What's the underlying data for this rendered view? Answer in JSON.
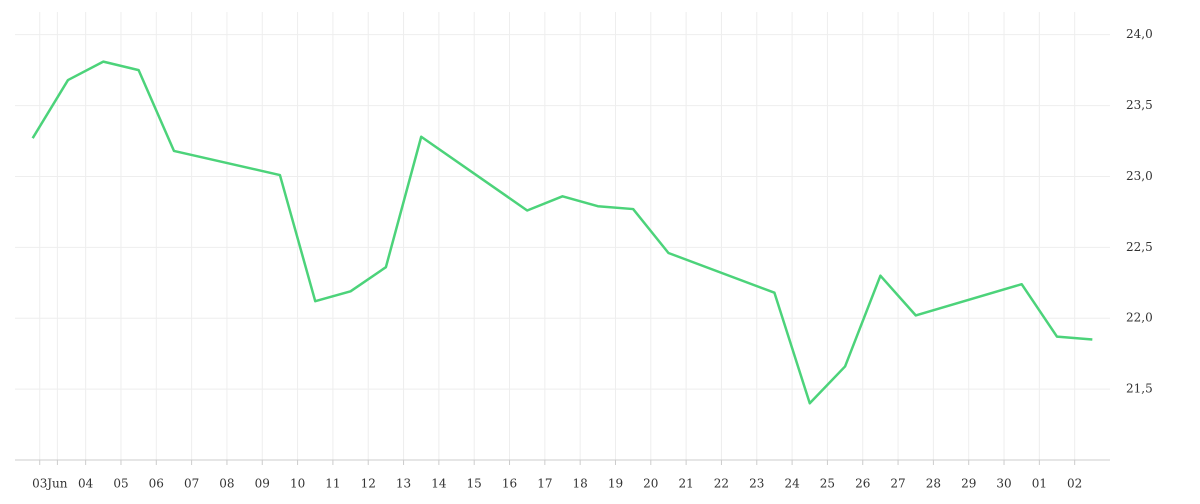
{
  "chart_data": {
    "type": "line",
    "x": [
      0,
      1,
      2,
      3,
      4,
      7,
      8,
      9,
      10,
      11,
      14,
      15,
      16,
      17,
      18,
      21,
      22,
      23,
      24,
      25,
      28,
      29,
      30
    ],
    "series": [
      {
        "color": "#4cd37a",
        "values": [
          23.27,
          23.68,
          23.81,
          23.75,
          23.18,
          23.01,
          22.12,
          22.19,
          22.36,
          23.28,
          22.76,
          22.86,
          22.79,
          22.77,
          22.46,
          22.18,
          21.4,
          21.66,
          22.3,
          22.02,
          22.24,
          21.87,
          21.85
        ]
      }
    ],
    "xlim": [
      -0.5,
      30.5
    ],
    "xticks": [
      {
        "value": 0.2,
        "label": "03"
      },
      {
        "value": 0.7,
        "label": "Jun"
      },
      {
        "value": 1.5,
        "label": "04"
      },
      {
        "value": 2.5,
        "label": "05"
      },
      {
        "value": 3.5,
        "label": "06"
      },
      {
        "value": 4.5,
        "label": "07"
      },
      {
        "value": 5.5,
        "label": "08"
      },
      {
        "value": 6.5,
        "label": "09"
      },
      {
        "value": 7.5,
        "label": "10"
      },
      {
        "value": 8.5,
        "label": "11"
      },
      {
        "value": 9.5,
        "label": "12"
      },
      {
        "value": 10.5,
        "label": "13"
      },
      {
        "value": 11.5,
        "label": "14"
      },
      {
        "value": 12.5,
        "label": "15"
      },
      {
        "value": 13.5,
        "label": "16"
      },
      {
        "value": 14.5,
        "label": "17"
      },
      {
        "value": 15.5,
        "label": "18"
      },
      {
        "value": 16.5,
        "label": "19"
      },
      {
        "value": 17.5,
        "label": "20"
      },
      {
        "value": 18.5,
        "label": "21"
      },
      {
        "value": 19.5,
        "label": "22"
      },
      {
        "value": 20.5,
        "label": "23"
      },
      {
        "value": 21.5,
        "label": "24"
      },
      {
        "value": 22.5,
        "label": "25"
      },
      {
        "value": 23.5,
        "label": "26"
      },
      {
        "value": 24.5,
        "label": "27"
      },
      {
        "value": 25.5,
        "label": "28"
      },
      {
        "value": 26.5,
        "label": "29"
      },
      {
        "value": 27.5,
        "label": "30"
      },
      {
        "value": 28.5,
        "label": "01"
      },
      {
        "value": 29.5,
        "label": "02"
      }
    ],
    "ylim": [
      21.0,
      24.16
    ],
    "yticks": [
      {
        "value": 21.5,
        "label": "21,5"
      },
      {
        "value": 22.0,
        "label": "22,0"
      },
      {
        "value": 22.5,
        "label": "22,5"
      },
      {
        "value": 23.0,
        "label": "23,0"
      },
      {
        "value": 23.5,
        "label": "23,5"
      },
      {
        "value": 24.0,
        "label": "24,0"
      }
    ],
    "grid": true,
    "y_axis_side": "right"
  }
}
